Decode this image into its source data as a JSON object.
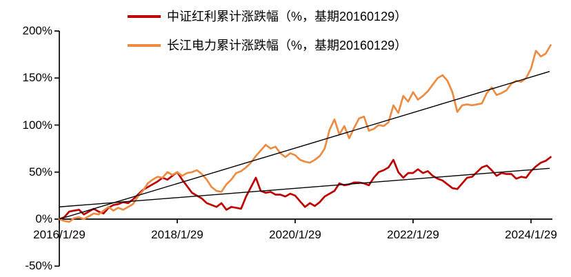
{
  "chart_data": {
    "type": "line",
    "title": "",
    "legend_position": "top-center",
    "grid": false,
    "colors": {
      "series_red": "#c00000",
      "series_orange": "#ed8b42",
      "trendline": "#000000",
      "axis": "#000000"
    },
    "legend": [
      {
        "name": "中证红利累计涨跌幅（%，基期20160129）",
        "color": "#c00000"
      },
      {
        "name": "长江电力累计涨跌幅（%，基期20160129）",
        "color": "#ed8b42"
      }
    ],
    "x_axis": {
      "tick_labels": [
        "2016/1/29",
        "2018/1/29",
        "2020/1/29",
        "2022/1/29",
        "2024/1/29"
      ],
      "tick_interval": "2 years"
    },
    "y_axis": {
      "tick_labels": [
        "200%",
        "150%",
        "100%",
        "50%",
        "0%",
        "-50%"
      ],
      "tick_values": [
        200,
        150,
        100,
        50,
        0,
        -50
      ],
      "min": -50,
      "max": 200,
      "unit": "%"
    },
    "series": [
      {
        "name": "中证红利累计涨跌幅（%，基期20160129）",
        "color": "#c00000",
        "start": "2016/1/29",
        "interval": "monthly",
        "unit": "%",
        "values": [
          0,
          2,
          8,
          9,
          10,
          5,
          8,
          11,
          8,
          6,
          12,
          15,
          16,
          18,
          17,
          21,
          26,
          31,
          34,
          37,
          40,
          44,
          42,
          46,
          50,
          42,
          35,
          28,
          25,
          22,
          17,
          15,
          13,
          17,
          10,
          13,
          12,
          11,
          24,
          34,
          44,
          30,
          28,
          29,
          26,
          26,
          24,
          27,
          25,
          19,
          13,
          17,
          14,
          18,
          24,
          27,
          30,
          38,
          36,
          37,
          39,
          39,
          38,
          36,
          44,
          50,
          52,
          55,
          63,
          50,
          44,
          49,
          49,
          53,
          49,
          51,
          46,
          43,
          41,
          37,
          33,
          32,
          38,
          44,
          45,
          50,
          55,
          57,
          52,
          46,
          49,
          48,
          48,
          43,
          45,
          44,
          51,
          56,
          60,
          62,
          66
        ]
      },
      {
        "name": "长江电力累计涨跌幅（%，基期20160129）",
        "color": "#ed8b42",
        "start": "2016/1/29",
        "interval": "monthly",
        "unit": "%",
        "values": [
          0,
          -2,
          -3,
          1,
          2,
          0,
          3,
          6,
          5,
          9,
          13,
          9,
          12,
          10,
          13,
          16,
          24,
          30,
          38,
          42,
          45,
          44,
          50,
          47,
          50,
          46,
          49,
          50,
          52,
          48,
          42,
          34,
          30,
          29,
          37,
          42,
          49,
          51,
          55,
          60,
          67,
          73,
          79,
          75,
          77,
          70,
          66,
          70,
          68,
          63,
          61,
          60,
          63,
          67,
          75,
          95,
          106,
          90,
          99,
          86,
          97,
          107,
          109,
          94,
          96,
          100,
          99,
          103,
          121,
          113,
          131,
          125,
          135,
          127,
          131,
          136,
          143,
          150,
          153,
          147,
          135,
          114,
          121,
          122,
          121,
          122,
          123,
          134,
          140,
          132,
          134,
          137,
          144,
          147,
          146,
          150,
          160,
          179,
          173,
          176,
          185
        ]
      }
    ],
    "trendlines": [
      {
        "for": "中证红利累计涨跌幅",
        "start_value": 13,
        "end_value": 54,
        "color": "#000000"
      },
      {
        "for": "长江电力累计涨跌幅",
        "start_value": 0,
        "end_value": 157,
        "color": "#000000"
      }
    ]
  }
}
